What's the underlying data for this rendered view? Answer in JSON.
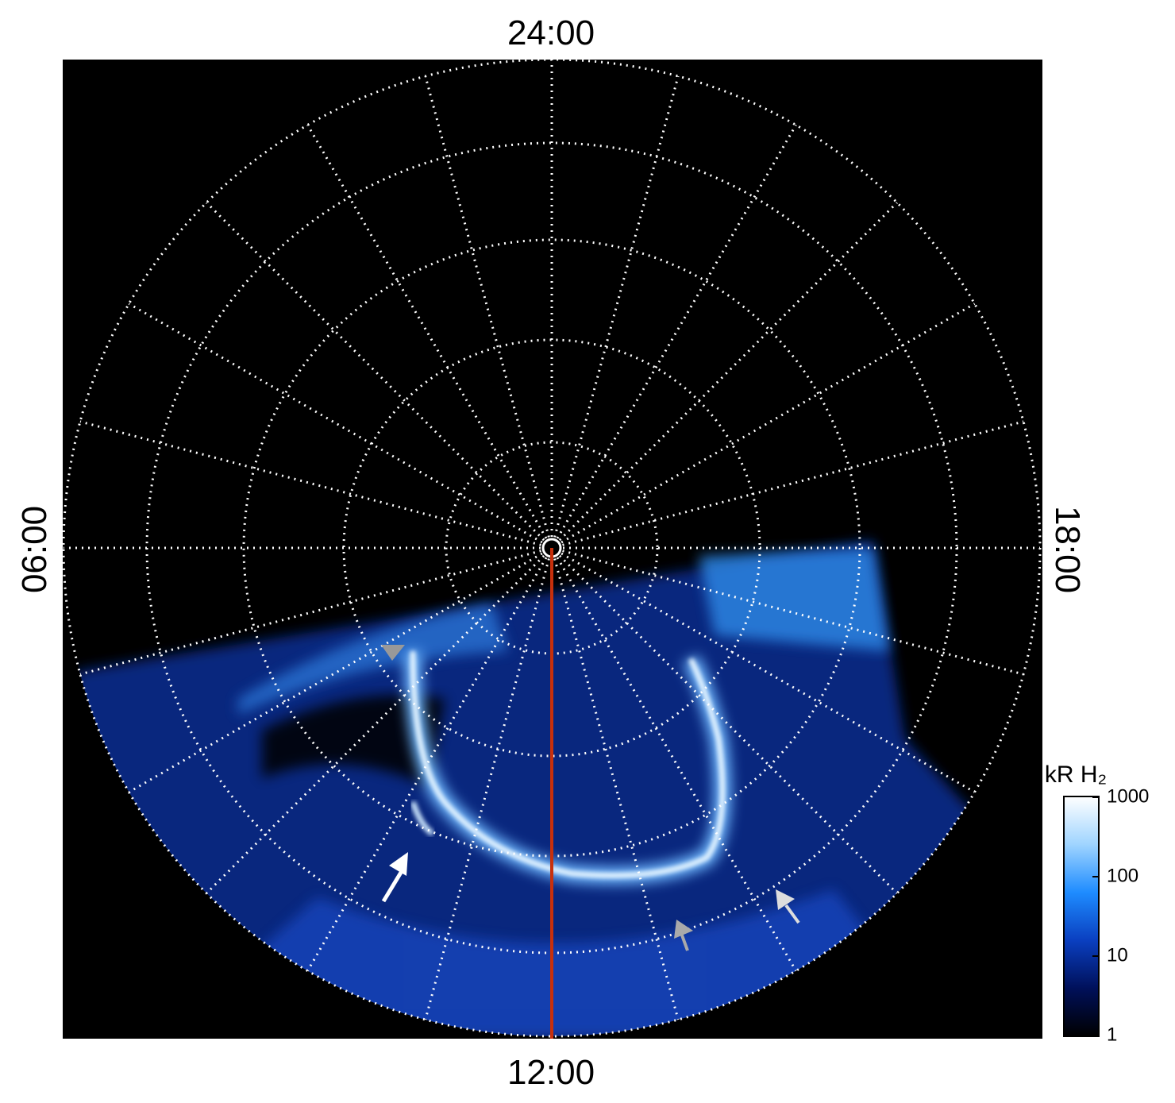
{
  "chart_data": {
    "type": "polar-image",
    "direction_labels": {
      "top": "24:00",
      "right": "18:00",
      "bottom": "12:00",
      "left": "06:00"
    },
    "grid": true,
    "colorbar": {
      "label": "kR H₂",
      "log": true,
      "ylim": [
        1,
        1000
      ],
      "yticks": [
        1,
        10,
        100,
        1000
      ],
      "colors": [
        "#000000",
        "#00105a",
        "#0a3fc0",
        "#1e8cff",
        "#9fd4ff",
        "#ffffff"
      ]
    }
  }
}
